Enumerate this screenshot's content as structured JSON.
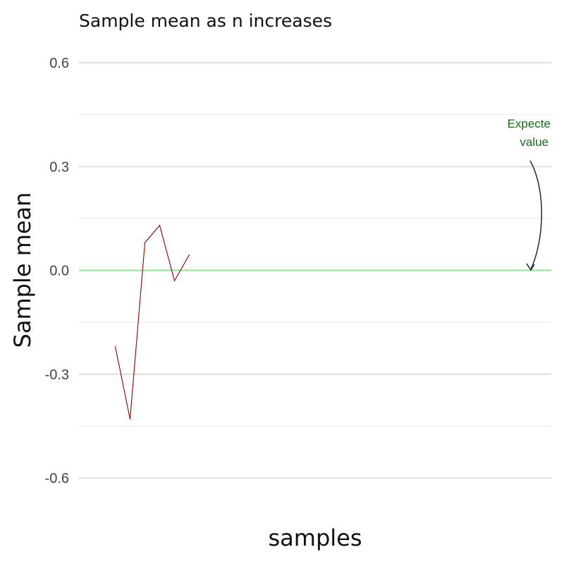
{
  "chart_data": {
    "type": "line",
    "title": "Sample mean as n increases",
    "xlabel": "samples",
    "ylabel": "Sample mean",
    "ylim": [
      -0.65,
      0.65
    ],
    "xlim": [
      0,
      30
    ],
    "yticks": [
      -0.6,
      -0.3,
      0.0,
      0.3,
      0.6
    ],
    "ytick_labels": [
      "-0.6",
      "-0.3",
      "0.0",
      "0.3",
      "0.6"
    ],
    "x_ticks_shown": false,
    "grid": true,
    "series": [
      {
        "x": [
          1,
          2,
          3,
          4,
          5,
          6
        ],
        "values": [
          -0.22,
          -0.43,
          0.08,
          0.13,
          -0.03,
          0.045
        ],
        "color": "#8b0000"
      }
    ],
    "reference_line": {
      "y": 0.0,
      "color": "#90ee90"
    },
    "annotation": {
      "lines": [
        "Expecte",
        "value"
      ],
      "color": "#1a6b1a",
      "arrow_color": "#333333"
    }
  }
}
